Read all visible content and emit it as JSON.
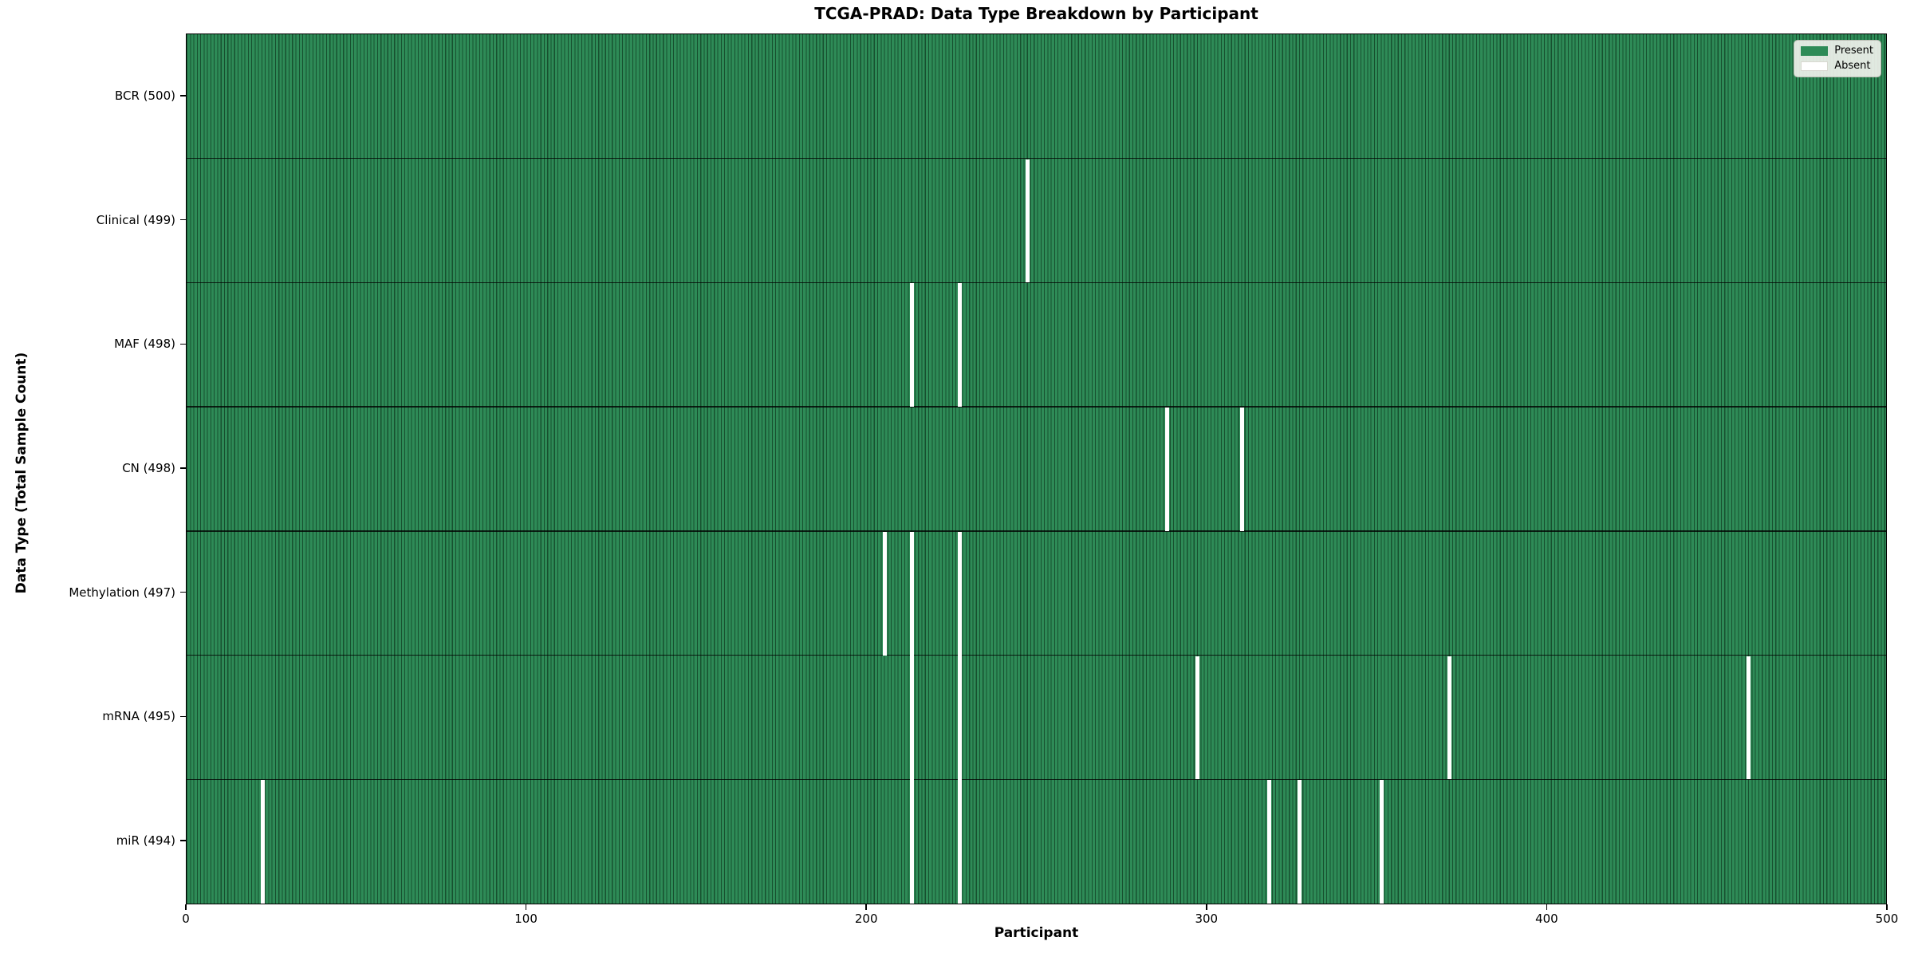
{
  "figure": {
    "title": "TCGA-PRAD: Data Type Breakdown by Participant",
    "xlabel": "Participant",
    "ylabel": "Data Type (Total Sample Count)"
  },
  "chart_data": {
    "type": "heatmap",
    "title": "TCGA-PRAD: Data Type Breakdown by Participant",
    "xlabel": "Participant",
    "ylabel": "Data Type (Total Sample Count)",
    "x_range": [
      0,
      500
    ],
    "x_ticks": [
      0,
      100,
      200,
      300,
      400,
      500
    ],
    "n_participants": 500,
    "present_color": "#2e8b57",
    "absent_color": "#ffffff",
    "bar_edge_color": "#17502f",
    "grid": false,
    "legend_position": "upper right",
    "rows": [
      {
        "name": "BCR",
        "label": "BCR (500)",
        "total": 500,
        "absent_participants": []
      },
      {
        "name": "Clinical",
        "label": "Clinical (499)",
        "total": 499,
        "absent_participants": [
          247
        ]
      },
      {
        "name": "MAF",
        "label": "MAF (498)",
        "total": 498,
        "absent_participants": [
          213,
          227
        ]
      },
      {
        "name": "CN",
        "label": "CN (498)",
        "total": 498,
        "absent_participants": [
          288,
          310
        ]
      },
      {
        "name": "Methylation",
        "label": "Methylation (497)",
        "total": 497,
        "absent_participants": [
          205,
          213,
          227
        ]
      },
      {
        "name": "mRNA",
        "label": "mRNA (495)",
        "total": 495,
        "absent_participants": [
          213,
          227,
          297,
          371,
          459
        ]
      },
      {
        "name": "miR",
        "label": "miR (494)",
        "total": 494,
        "absent_participants": [
          22,
          213,
          227,
          318,
          327,
          351
        ]
      }
    ],
    "legend": [
      {
        "label": "Present",
        "color": "#2e8b57"
      },
      {
        "label": "Absent",
        "color": "#ffffff"
      }
    ]
  }
}
